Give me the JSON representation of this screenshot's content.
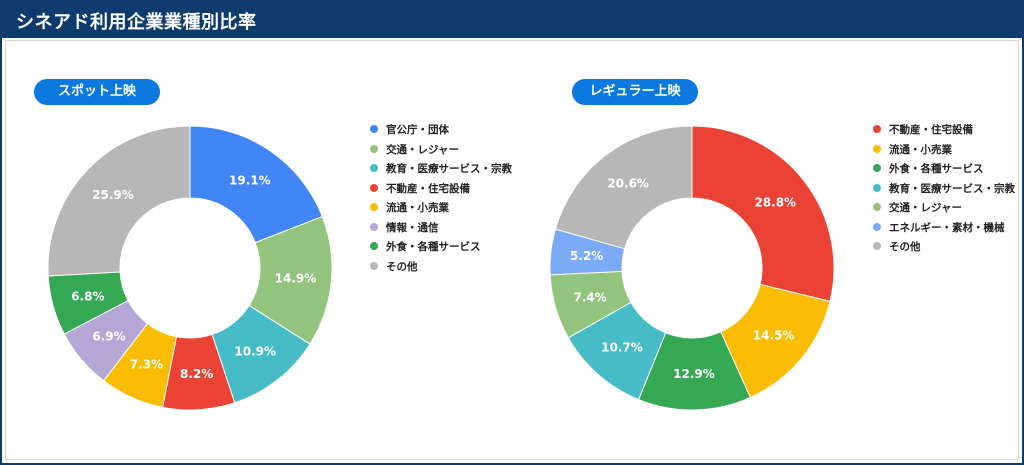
{
  "header": {
    "title": "シネアド利用企業業種別比率"
  },
  "chart_data": [
    {
      "type": "pie",
      "title": "スポット上映",
      "categories": [
        "官公庁・団体",
        "交通・レジャー",
        "教育・医療サービス・宗教",
        "不動産・住宅設備",
        "流通・小売業",
        "情報・通信",
        "外食・各種サービス",
        "その他"
      ],
      "values": [
        19.1,
        14.9,
        10.9,
        8.2,
        7.3,
        6.9,
        6.8,
        25.9
      ],
      "labels": [
        "19.1%",
        "14.9%",
        "10.9%",
        "8.2%",
        "7.3%",
        "6.9%",
        "6.8%",
        "25.9%"
      ],
      "colors": [
        "#4285f4",
        "#93c47d",
        "#46bdc6",
        "#ea4335",
        "#fbbc04",
        "#b4a7d6",
        "#34a853",
        "#b7b7b7"
      ],
      "legend": "right"
    },
    {
      "type": "pie",
      "title": "レギュラー上映",
      "categories": [
        "不動産・住宅設備",
        "流通・小売業",
        "外食・各種サービス",
        "教育・医療サービス・宗教",
        "交通・レジャー",
        "エネルギー・素材・機械",
        "その他"
      ],
      "values": [
        28.8,
        14.5,
        12.9,
        10.7,
        7.4,
        5.2,
        20.6
      ],
      "labels": [
        "28.8%",
        "14.5%",
        "12.9%",
        "10.7%",
        "7.4%",
        "5.2%",
        "20.6%"
      ],
      "colors": [
        "#ea4335",
        "#fbbc04",
        "#34a853",
        "#46bdc6",
        "#93c47d",
        "#7baaf7",
        "#b7b7b7"
      ],
      "legend": "right"
    }
  ]
}
